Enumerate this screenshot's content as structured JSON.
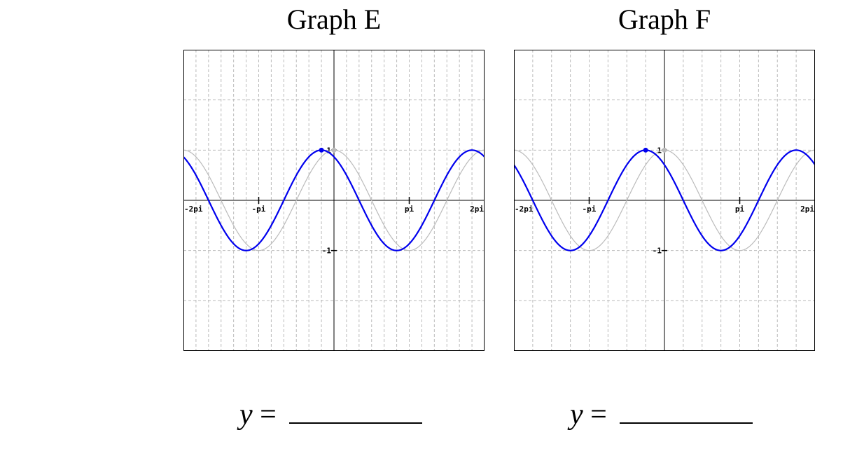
{
  "graphs": [
    {
      "id": "e",
      "title": "Graph E",
      "answer_prefix": "y",
      "answer_equals": "=",
      "answer_value": ""
    },
    {
      "id": "f",
      "title": "Graph F",
      "answer_prefix": "y",
      "answer_equals": "=",
      "answer_value": ""
    }
  ],
  "chart_data": [
    {
      "type": "line",
      "title": "Graph E",
      "xlim": [
        -6.283,
        6.283
      ],
      "ylim": [
        -3,
        3
      ],
      "x_ticks": [
        {
          "value": -6.283,
          "label": "-2pi"
        },
        {
          "value": -3.1416,
          "label": "-pi"
        },
        {
          "value": 3.1416,
          "label": "pi"
        },
        {
          "value": 6.283,
          "label": "2pi"
        }
      ],
      "y_ticks": [
        {
          "value": 1,
          "label": "1"
        },
        {
          "value": -1,
          "label": "-1"
        }
      ],
      "grid": true,
      "grid_x_step": 0.5236,
      "grid_y_step": 1,
      "series": [
        {
          "role": "reference",
          "color": "#bbbbbb",
          "function": "cos",
          "phase_shift": 0,
          "amplitude": 1,
          "marker_point": [
            0,
            1
          ]
        },
        {
          "role": "graph",
          "color": "#0000ee",
          "function": "cos",
          "phase_shift": -0.5236,
          "amplitude": 1,
          "marker_point": [
            -0.5236,
            1
          ]
        }
      ]
    },
    {
      "type": "line",
      "title": "Graph F",
      "xlim": [
        -6.283,
        6.283
      ],
      "ylim": [
        -3,
        3
      ],
      "x_ticks": [
        {
          "value": -6.283,
          "label": "-2pi"
        },
        {
          "value": -3.1416,
          "label": "-pi"
        },
        {
          "value": 3.1416,
          "label": "pi"
        },
        {
          "value": 6.283,
          "label": "2pi"
        }
      ],
      "y_ticks": [
        {
          "value": 1,
          "label": "1"
        },
        {
          "value": -1,
          "label": "-1"
        }
      ],
      "grid": true,
      "grid_x_step": 0.7854,
      "grid_y_step": 1,
      "series": [
        {
          "role": "reference",
          "color": "#bbbbbb",
          "function": "cos",
          "phase_shift": 0,
          "amplitude": 1,
          "marker_point": [
            0,
            1
          ]
        },
        {
          "role": "graph",
          "color": "#0000ee",
          "function": "cos",
          "phase_shift": -0.7854,
          "amplitude": 1,
          "marker_point": [
            -0.7854,
            1
          ]
        }
      ]
    }
  ]
}
